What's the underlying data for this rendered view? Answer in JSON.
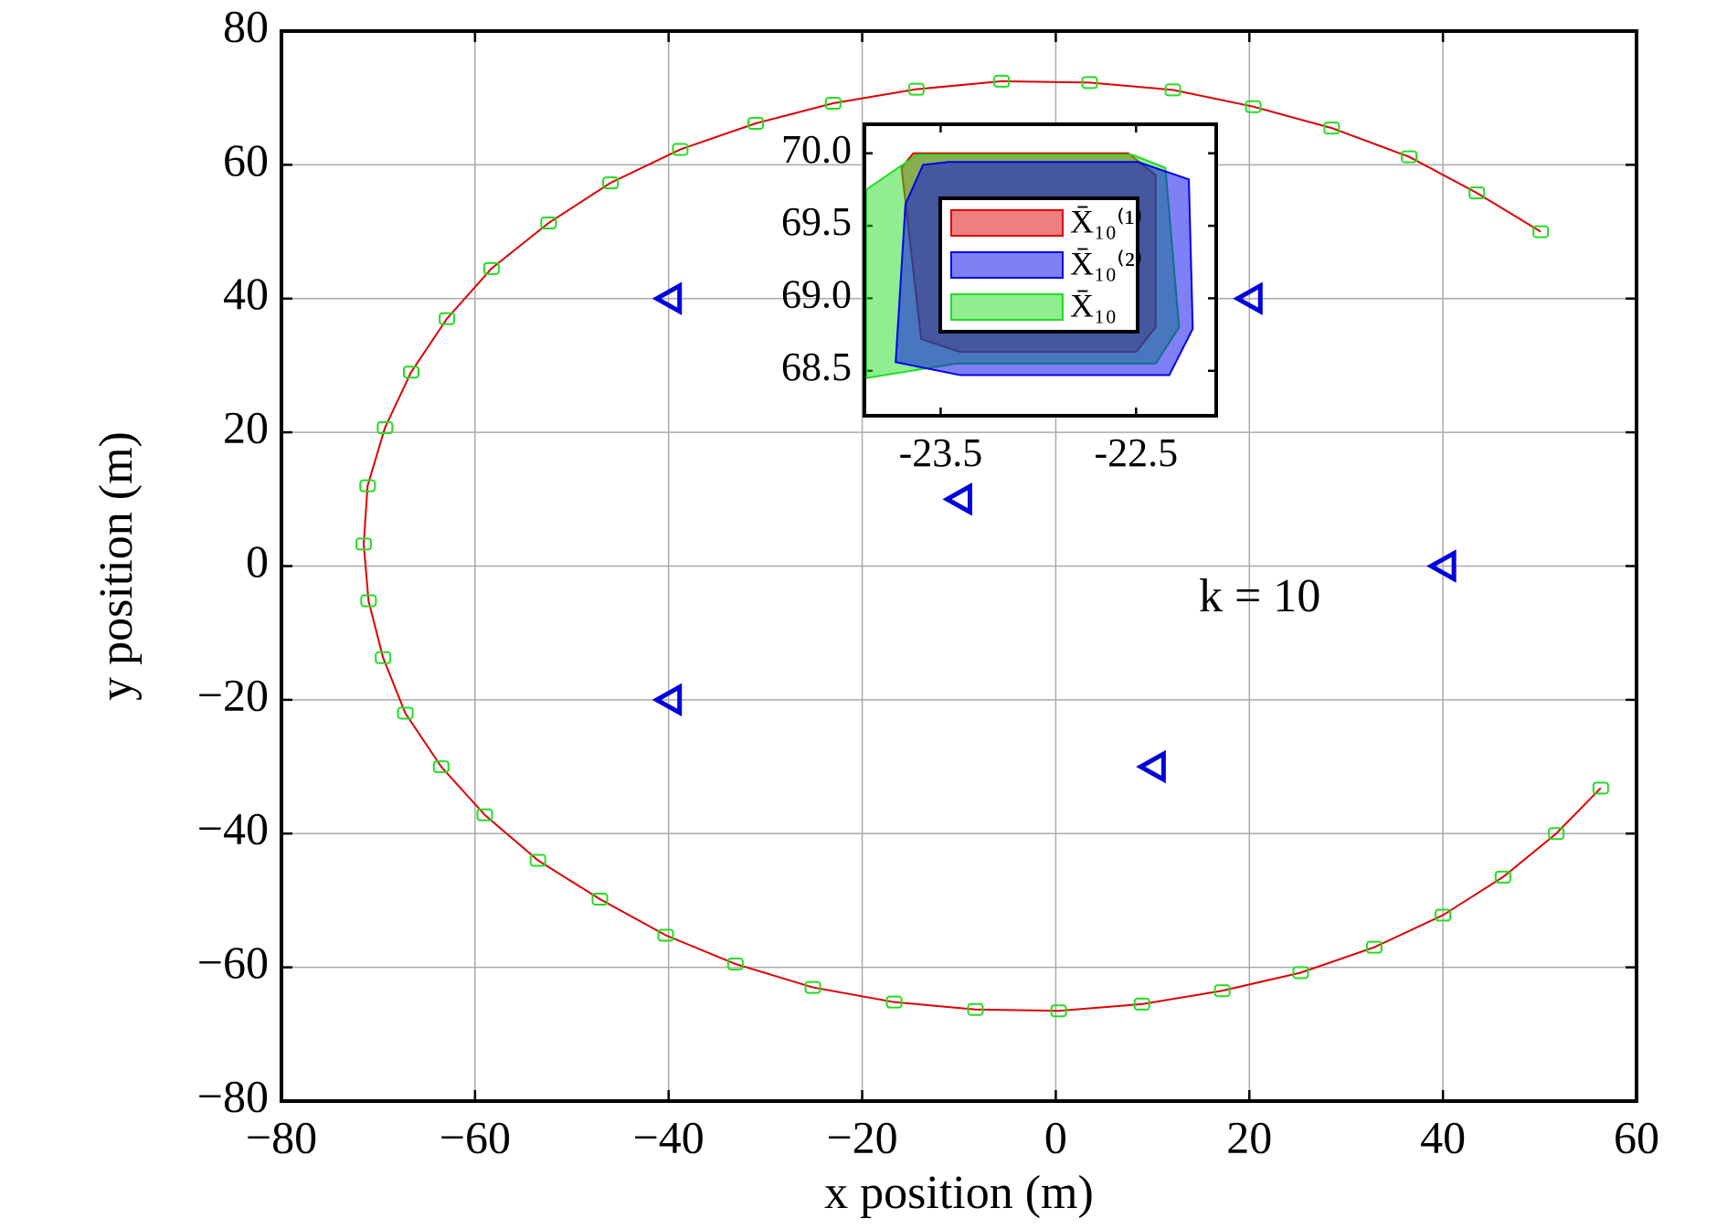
{
  "chart_data": [
    {
      "type": "line",
      "xlabel": "x position (m)",
      "ylabel": "y position (m)",
      "xlim": [
        -80,
        60
      ],
      "ylim": [
        -80,
        80
      ],
      "xticks": [
        {
          "value": -80,
          "label": "−80"
        },
        {
          "value": -60,
          "label": "−60"
        },
        {
          "value": -40,
          "label": "−40"
        },
        {
          "value": -20,
          "label": "−20"
        },
        0,
        20,
        40,
        60
      ],
      "yticks": [
        {
          "value": -80,
          "label": "−80"
        },
        {
          "value": -60,
          "label": "−60"
        },
        {
          "value": -40,
          "label": "−40"
        },
        {
          "value": -20,
          "label": "−20"
        },
        0,
        20,
        40,
        60,
        80
      ],
      "grid": true,
      "annotation": "k = 10",
      "series": [
        {
          "color": "#e00000",
          "marker": "square",
          "marker_color": "#22dd22",
          "x": [
            50.1,
            43.5,
            36.5,
            28.5,
            20.4,
            12.1,
            3.5,
            -5.6,
            -14.4,
            -23.0,
            -31.0,
            -38.8,
            -46.0,
            -52.4,
            -58.3,
            -62.9,
            -66.6,
            -69.3,
            -71.1,
            -71.5,
            -71.0,
            -69.5,
            -67.2,
            -63.5,
            -59.0,
            -53.5,
            -47.1,
            -40.3,
            -33.1,
            -25.1,
            -16.7,
            -8.3,
            0.3,
            8.9,
            17.2,
            25.3,
            32.9,
            40.0,
            46.2,
            51.7,
            56.3
          ],
          "y": [
            50.0,
            55.8,
            61.2,
            65.5,
            68.7,
            71.2,
            72.3,
            72.5,
            71.3,
            69.2,
            66.2,
            62.3,
            57.3,
            51.3,
            44.5,
            37.0,
            29.0,
            20.7,
            12.0,
            3.3,
            -5.2,
            -13.7,
            -22.0,
            -30.0,
            -37.2,
            -44.0,
            -49.8,
            -55.2,
            -59.5,
            -63.0,
            -65.2,
            -66.3,
            -66.5,
            -65.5,
            -63.5,
            -60.8,
            -57.0,
            -52.2,
            -46.5,
            -40.0,
            -33.2
          ]
        },
        {
          "color": "#0000dd",
          "marker": "triangle",
          "line": false,
          "x": [
            -40,
            20,
            -10,
            40,
            -40,
            10
          ],
          "y": [
            40,
            40,
            10,
            0,
            -20,
            -30
          ]
        }
      ]
    },
    {
      "type": "polygon",
      "xlim": [
        -23.89,
        -22.09
      ],
      "ylim": [
        68.19,
        70.2
      ],
      "xticks": [
        -23.5,
        -22.5
      ],
      "yticks": [
        {
          "value": 70.0,
          "label": "70.0"
        },
        69.5,
        {
          "value": 69.0,
          "label": "69.0"
        },
        68.5
      ],
      "grid": false,
      "series": [
        {
          "name": "X̄₁₀⁽¹⁾",
          "color": "#e00000",
          "x": [
            -23.64,
            -22.54,
            -22.4,
            -22.4,
            -22.5,
            -23.4,
            -23.6,
            -23.7
          ],
          "y": [
            70.0,
            70.0,
            69.85,
            68.8,
            68.63,
            68.63,
            68.72,
            69.9
          ]
        },
        {
          "name": "X̄₁₀",
          "color": "#22dd22",
          "x": [
            -23.88,
            -23.62,
            -22.52,
            -22.35,
            -22.28,
            -22.4,
            -23.42,
            -23.88
          ],
          "y": [
            69.75,
            69.99,
            69.99,
            69.9,
            68.8,
            68.55,
            68.55,
            68.45
          ]
        },
        {
          "name": "X̄₁₀⁽²⁾",
          "color": "#0000ee",
          "x": [
            -23.68,
            -23.59,
            -23.46,
            -22.49,
            -22.23,
            -22.21,
            -22.33,
            -23.4,
            -23.73
          ],
          "y": [
            69.65,
            69.92,
            69.94,
            69.94,
            69.82,
            68.79,
            68.47,
            68.47,
            68.56
          ]
        }
      ]
    }
  ]
}
